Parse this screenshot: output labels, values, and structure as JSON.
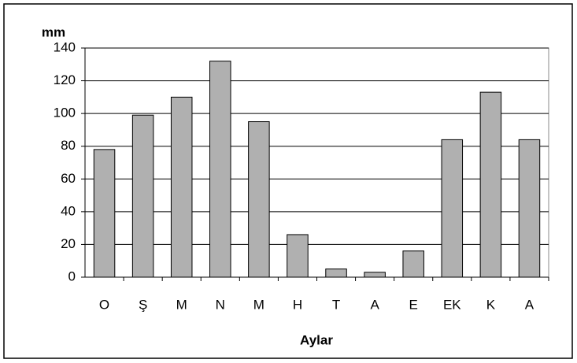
{
  "chart_data": {
    "type": "bar",
    "y_label": "mm",
    "x_label": "Aylar",
    "categories": [
      "O",
      "Ş",
      "M",
      "N",
      "M",
      "H",
      "T",
      "A",
      "E",
      "EK",
      "K",
      "A"
    ],
    "values": [
      78,
      99,
      110,
      132,
      95,
      26,
      5,
      3,
      16,
      84,
      113,
      84
    ],
    "color": "#b0b0b0",
    "ylim": [
      0,
      140
    ],
    "yticks": [
      0,
      20,
      40,
      60,
      80,
      100,
      120,
      140
    ],
    "grid": true
  }
}
